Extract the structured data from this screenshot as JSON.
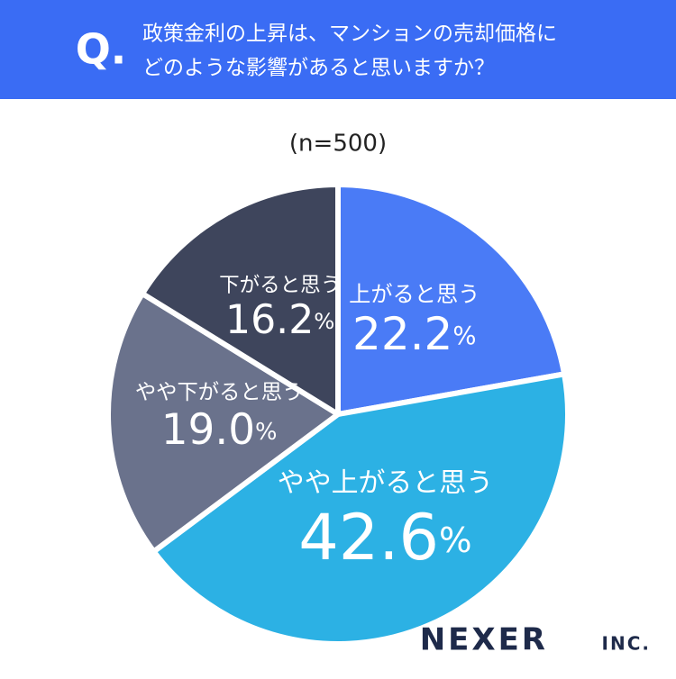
{
  "chart_data": {
    "type": "pie",
    "badge": "Q.",
    "question": [
      "政策金利の上昇は、マンションの売却価格に",
      "どのような影響があると思いますか？"
    ],
    "subtitle": "(n=500)",
    "categories": [
      "上がると思う",
      "やや上がると思う",
      "やや下がると思う",
      "下がると思う"
    ],
    "values": [
      22.2,
      42.6,
      19.0,
      16.2
    ],
    "value_labels": [
      "22.2%",
      "42.6%",
      "19.0%",
      "16.2%"
    ],
    "colors": [
      "#4a7bf6",
      "#2cb1e4",
      "#6a728c",
      "#3e455c"
    ],
    "logo": "NEXER",
    "logo_suffix": "INC."
  }
}
